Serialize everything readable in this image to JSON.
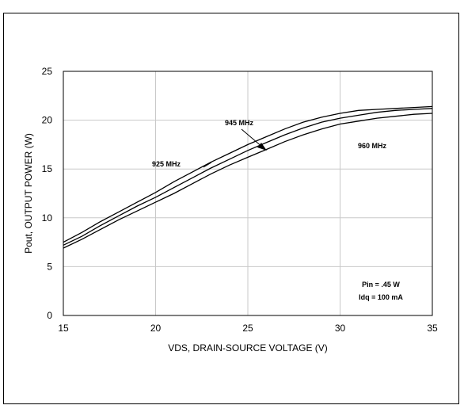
{
  "chart_data": {
    "type": "line",
    "title": "",
    "xlabel": "VDS, DRAIN-SOURCE VOLTAGE (V)",
    "ylabel": "Pout, OUTPUT POWER (W)",
    "xlim": [
      15,
      35
    ],
    "ylim": [
      0,
      25
    ],
    "xticks": [
      "15",
      "20",
      "25",
      "30",
      "35"
    ],
    "yticks": [
      "0",
      "5",
      "10",
      "15",
      "20",
      "25"
    ],
    "grid": true,
    "x": [
      15,
      16,
      17,
      18,
      19,
      20,
      21,
      22,
      23,
      24,
      25,
      26,
      27,
      28,
      29,
      30,
      31,
      32,
      33,
      34,
      35
    ],
    "series": [
      {
        "name": "925 MHz",
        "values": [
          7.5,
          8.5,
          9.6,
          10.6,
          11.6,
          12.6,
          13.7,
          14.7,
          15.7,
          16.6,
          17.5,
          18.3,
          19.1,
          19.8,
          20.3,
          20.7,
          21.0,
          21.1,
          21.2,
          21.3,
          21.4
        ]
      },
      {
        "name": "945 MHz",
        "values": [
          7.2,
          8.1,
          9.2,
          10.2,
          11.2,
          12.1,
          13.1,
          14.1,
          15.1,
          16.0,
          16.9,
          17.7,
          18.5,
          19.2,
          19.8,
          20.2,
          20.5,
          20.8,
          21.0,
          21.1,
          21.2
        ]
      },
      {
        "name": "960 MHz",
        "values": [
          6.9,
          7.8,
          8.8,
          9.8,
          10.7,
          11.6,
          12.5,
          13.5,
          14.5,
          15.4,
          16.2,
          17.0,
          17.8,
          18.5,
          19.1,
          19.6,
          19.9,
          20.2,
          20.4,
          20.6,
          20.7
        ]
      }
    ],
    "annotations": [
      "925 MHz",
      "945 MHz",
      "960 MHz",
      "Pin = .45 W",
      "Idq = 100 mA"
    ]
  }
}
